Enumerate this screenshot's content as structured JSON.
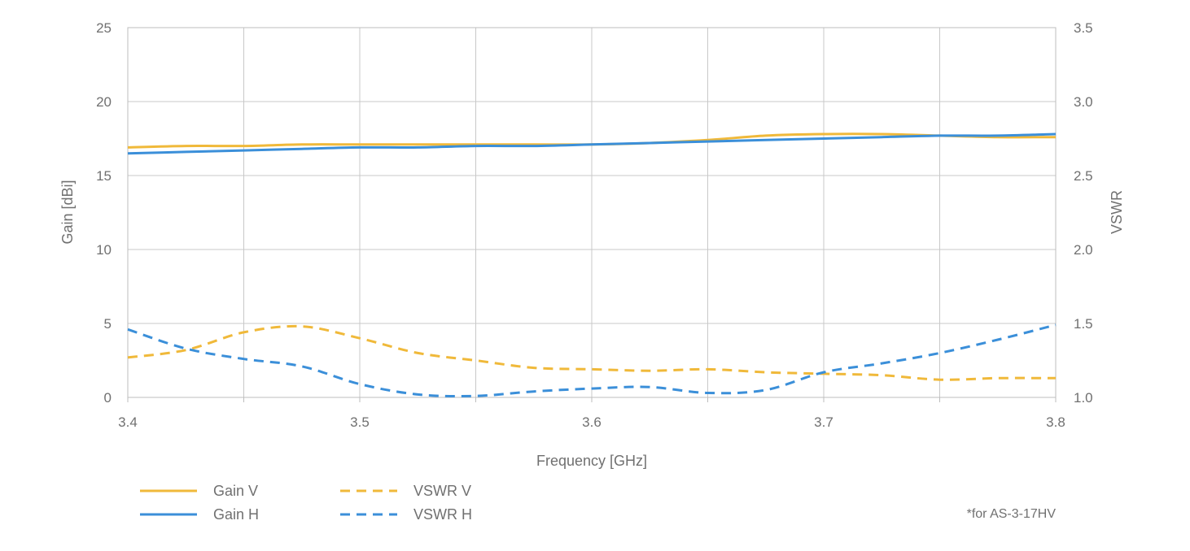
{
  "chart_data": {
    "type": "line",
    "xlabel": "Frequency [GHz]",
    "ylabel": "Gain [dBi]",
    "y2label": "VSWR",
    "xlim": [
      3.4,
      3.8
    ],
    "ylim": [
      0,
      25
    ],
    "y2lim": [
      1.0,
      3.5
    ],
    "x_ticks": [
      "3.4",
      "3.5",
      "3.6",
      "3.7",
      "3.8"
    ],
    "y_ticks": [
      "0",
      "5",
      "10",
      "15",
      "20",
      "25"
    ],
    "y2_ticks": [
      "1.0",
      "1.5",
      "2.0",
      "2.5",
      "3.0",
      "3.5"
    ],
    "grid": true,
    "legend_position": "bottom-left",
    "note": "*for AS-3-17HV",
    "x": [
      3.4,
      3.425,
      3.45,
      3.475,
      3.5,
      3.525,
      3.55,
      3.575,
      3.6,
      3.625,
      3.65,
      3.675,
      3.7,
      3.725,
      3.75,
      3.775,
      3.8
    ],
    "series": [
      {
        "name": "Gain V",
        "axis": "left",
        "style": "solid",
        "color": "#f0b93a",
        "values": [
          16.9,
          17.0,
          17.0,
          17.1,
          17.1,
          17.1,
          17.1,
          17.1,
          17.1,
          17.2,
          17.4,
          17.7,
          17.8,
          17.8,
          17.7,
          17.6,
          17.6
        ]
      },
      {
        "name": "Gain H",
        "axis": "left",
        "style": "solid",
        "color": "#3b8fd9",
        "values": [
          16.5,
          16.6,
          16.7,
          16.8,
          16.9,
          16.9,
          17.0,
          17.0,
          17.1,
          17.2,
          17.3,
          17.4,
          17.5,
          17.6,
          17.7,
          17.7,
          17.8
        ]
      },
      {
        "name": "VSWR V",
        "axis": "right",
        "style": "dashed",
        "color": "#f0b93a",
        "values": [
          1.27,
          1.32,
          1.44,
          1.48,
          1.4,
          1.3,
          1.25,
          1.2,
          1.19,
          1.18,
          1.19,
          1.17,
          1.16,
          1.15,
          1.12,
          1.13,
          1.13
        ]
      },
      {
        "name": "VSWR H",
        "axis": "right",
        "style": "dashed",
        "color": "#3b8fd9",
        "values": [
          1.46,
          1.33,
          1.26,
          1.21,
          1.09,
          1.02,
          1.01,
          1.04,
          1.06,
          1.07,
          1.03,
          1.05,
          1.17,
          1.23,
          1.3,
          1.39,
          1.49
        ]
      }
    ]
  }
}
